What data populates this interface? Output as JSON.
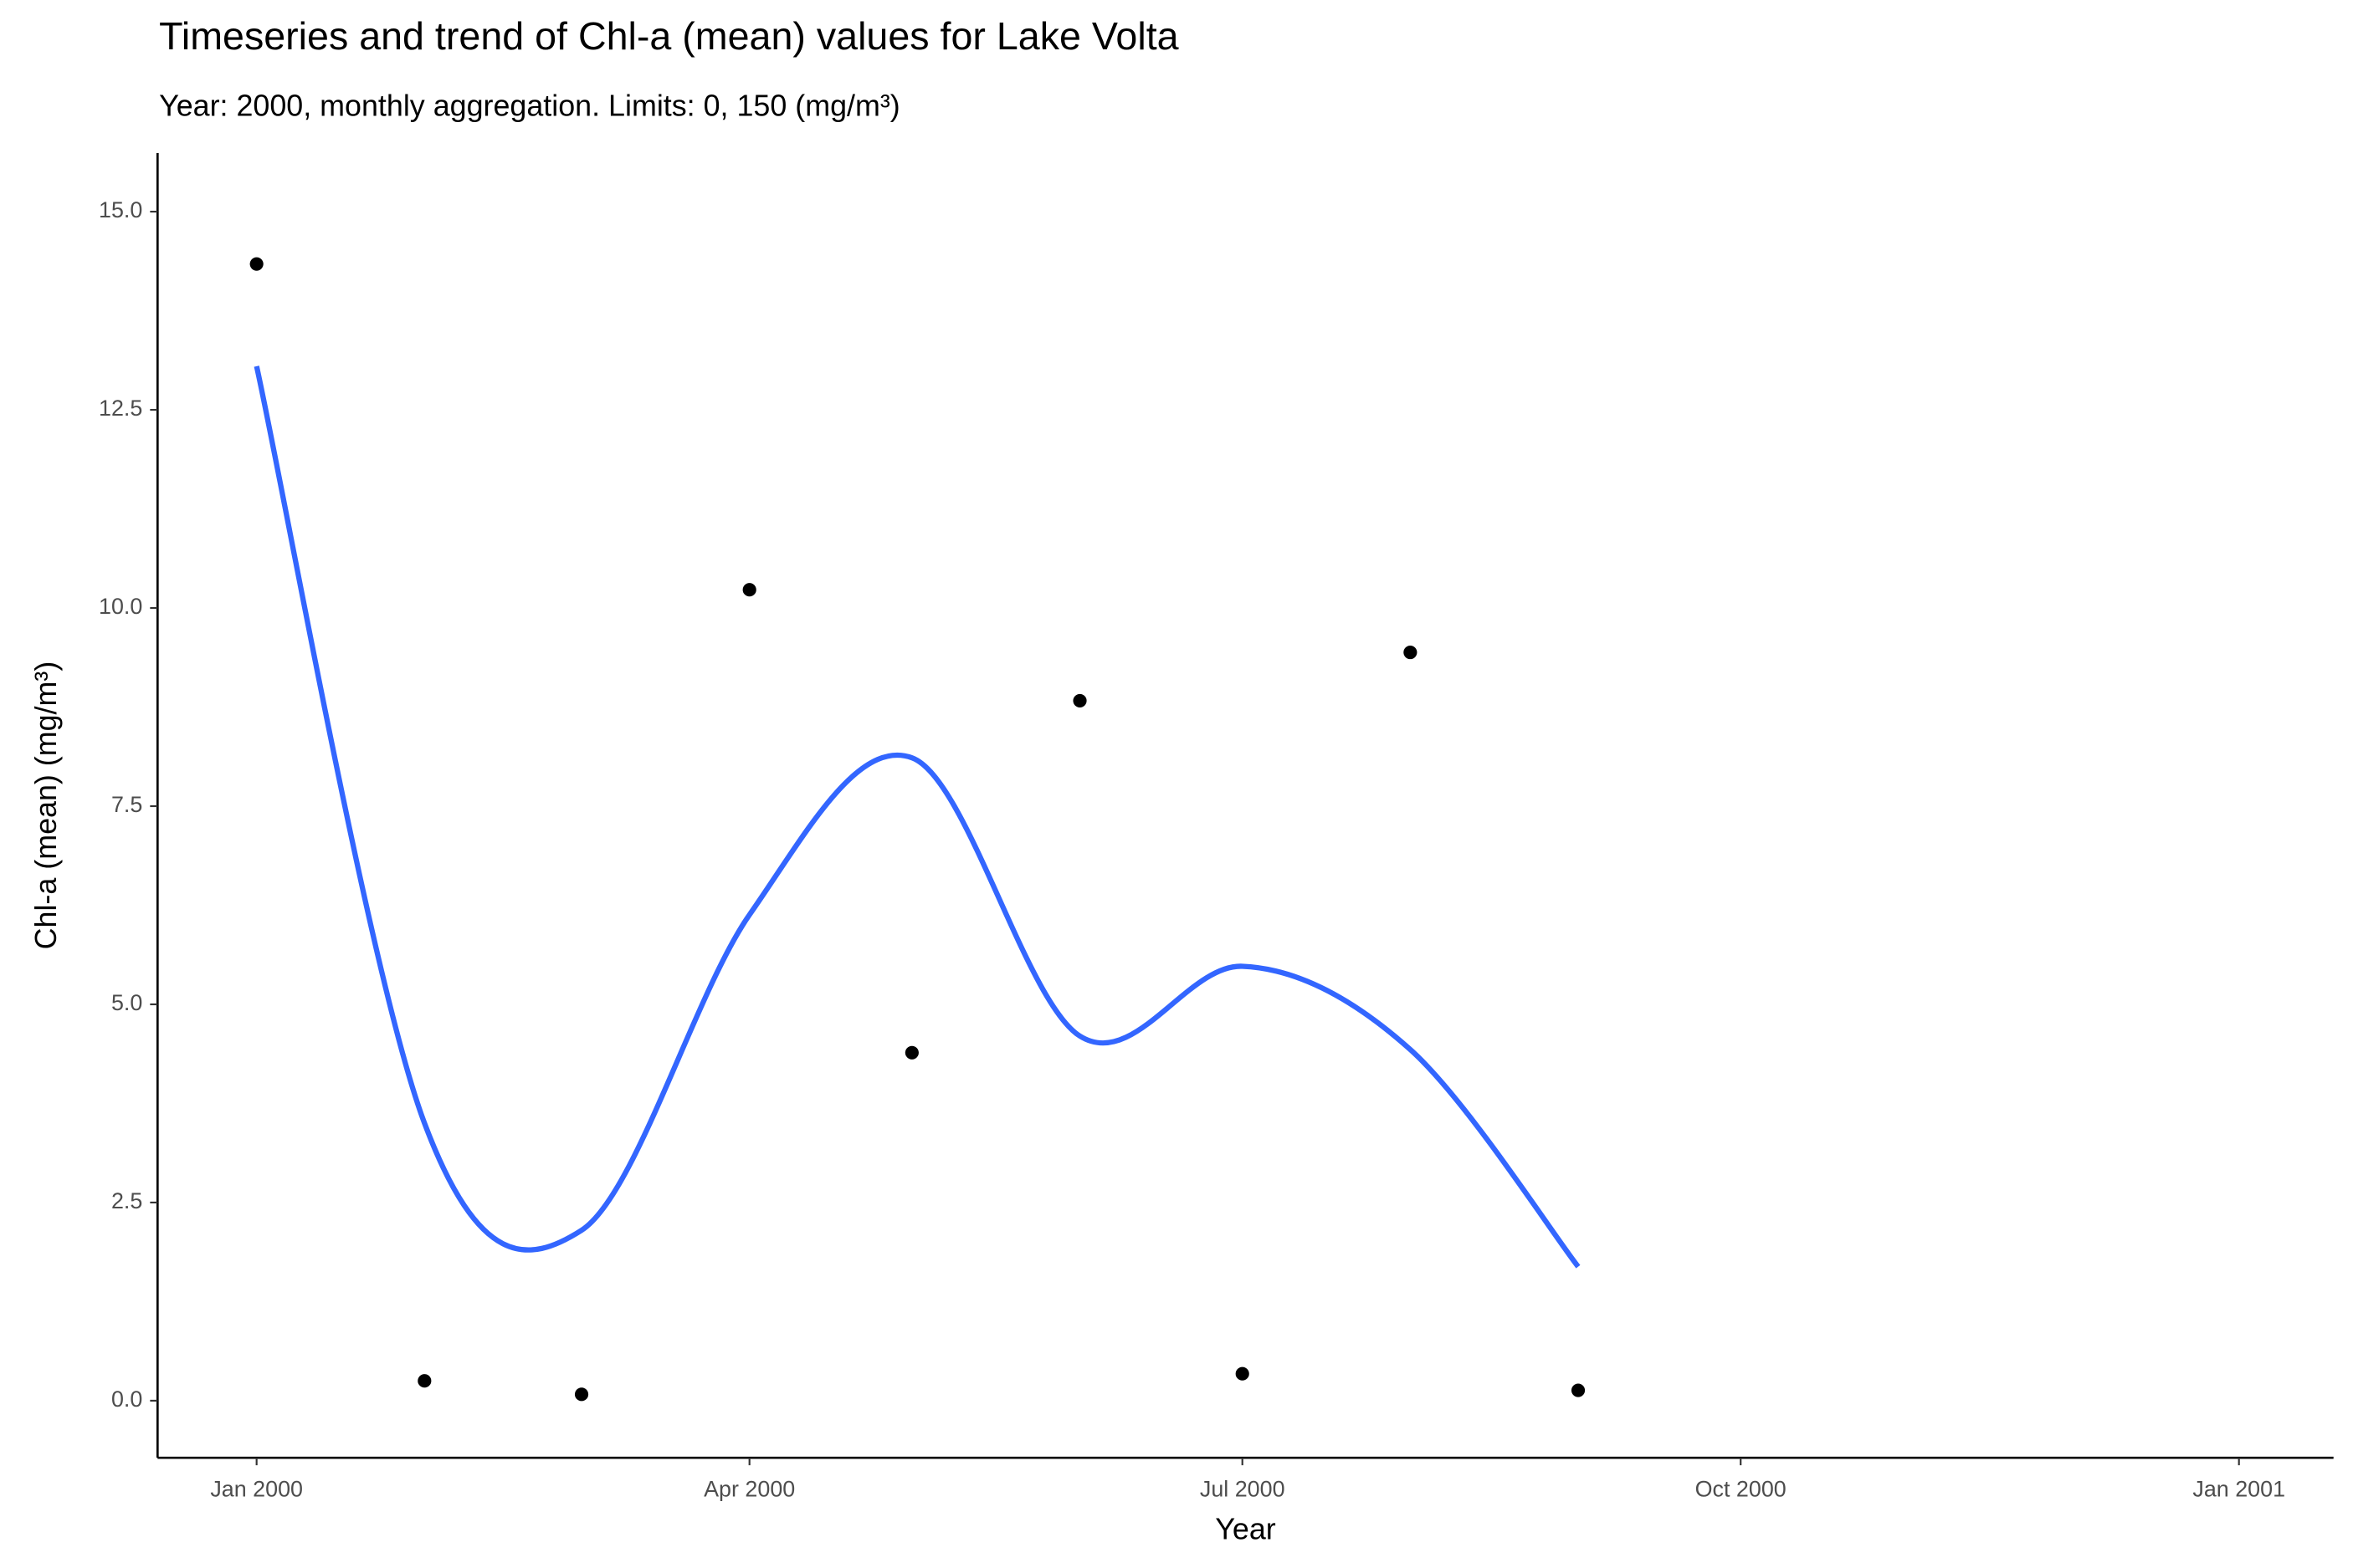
{
  "chart_data": {
    "type": "scatter",
    "title": "Timeseries and trend of Chl-a (mean) values for Lake Volta",
    "subtitle": "Year: 2000, monthly aggregation. Limits: 0, 150 (mg/m³)",
    "x_label": "Year",
    "y_label": "Chl-a (mean) (mg/m³)",
    "x": [
      "2000-01",
      "2000-02",
      "2000-03",
      "2000-04",
      "2000-05",
      "2000-06",
      "2000-07",
      "2000-08",
      "2000-09"
    ],
    "values": [
      14.34,
      0.25,
      0.08,
      10.23,
      4.39,
      8.83,
      0.34,
      9.44,
      0.13
    ],
    "color": "#000000",
    "trend": {
      "type": "line",
      "color": "#3366ff",
      "values": [
        13.05,
        3.5,
        2.15,
        6.13,
        8.11,
        4.6,
        5.48,
        4.43,
        1.69
      ]
    },
    "xlim": [
      "2000-01",
      "2001-01"
    ],
    "xticks": [
      {
        "value": "2000-01",
        "label": "Jan 2000"
      },
      {
        "value": "2000-04",
        "label": "Apr 2000"
      },
      {
        "value": "2000-07",
        "label": "Jul 2000"
      },
      {
        "value": "2000-10",
        "label": "Oct 2000"
      },
      {
        "value": "2001-01",
        "label": "Jan 2001"
      }
    ],
    "ylim": [
      -0.72,
      15.74
    ],
    "yticks": [
      {
        "value": 0,
        "label": "0.0"
      },
      2.5,
      {
        "value": 5,
        "label": "5.0"
      },
      7.5,
      {
        "value": 10,
        "label": "10.0"
      },
      12.5,
      {
        "value": 15,
        "label": "15.0"
      }
    ],
    "grid": false
  }
}
